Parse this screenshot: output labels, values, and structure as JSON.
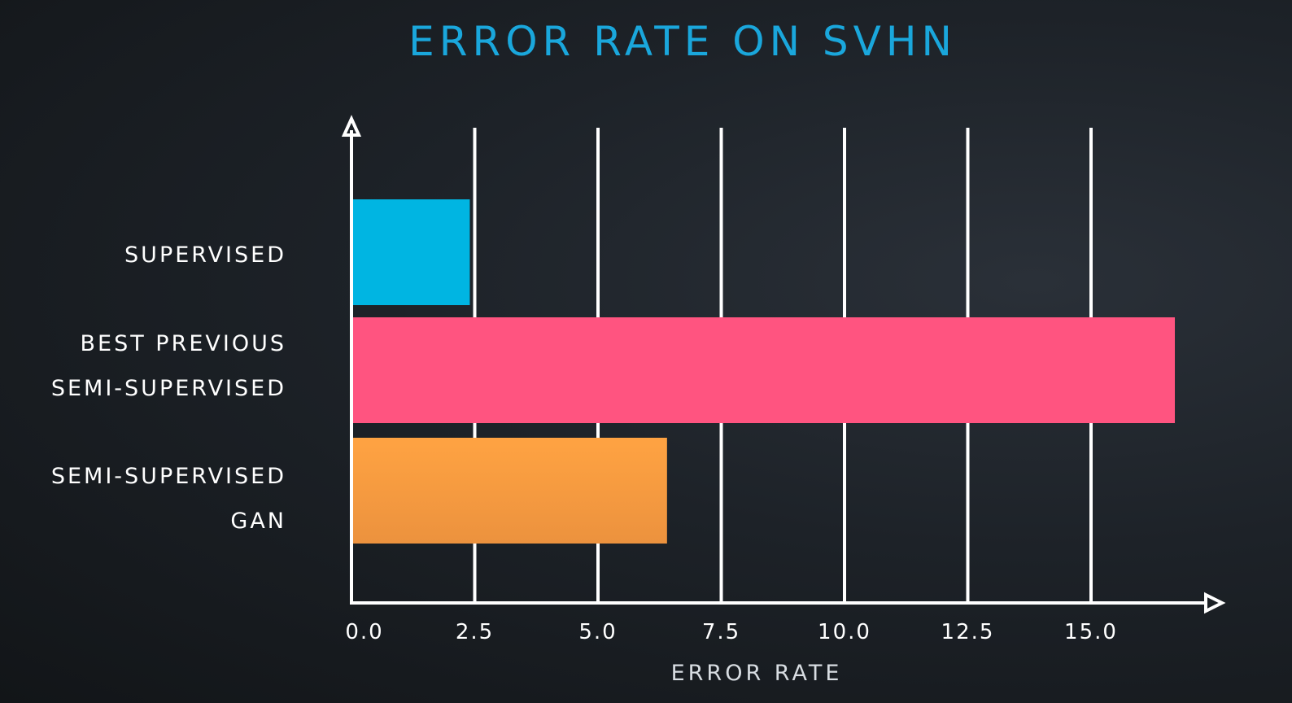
{
  "chart_data": {
    "type": "bar",
    "orientation": "horizontal",
    "title": "ERROR RATE ON SVHN",
    "xlabel": "ERROR RATE",
    "ylabel": "",
    "xlim": [
      0,
      17.5
    ],
    "xticks": [
      0.0,
      2.5,
      5.0,
      7.5,
      10.0,
      12.5,
      15.0
    ],
    "tick_labels": [
      "0.0",
      "2.5",
      "5.0",
      "7.5",
      "10.0",
      "12.5",
      "15.0"
    ],
    "grid": true,
    "categories": [
      {
        "lines": [
          "SUPERVISED"
        ]
      },
      {
        "lines": [
          "BEST PREVIOUS",
          "SEMI-SUPERVISED"
        ]
      },
      {
        "lines": [
          "SEMI-SUPERVISED",
          "GAN"
        ]
      }
    ],
    "values": [
      2.4,
      16.7,
      6.4
    ],
    "colors": [
      "#00b5e2",
      "#ff5480",
      "#f59a3c"
    ],
    "title_color": "#1aa7dc",
    "axis_color": "#ffffff"
  }
}
